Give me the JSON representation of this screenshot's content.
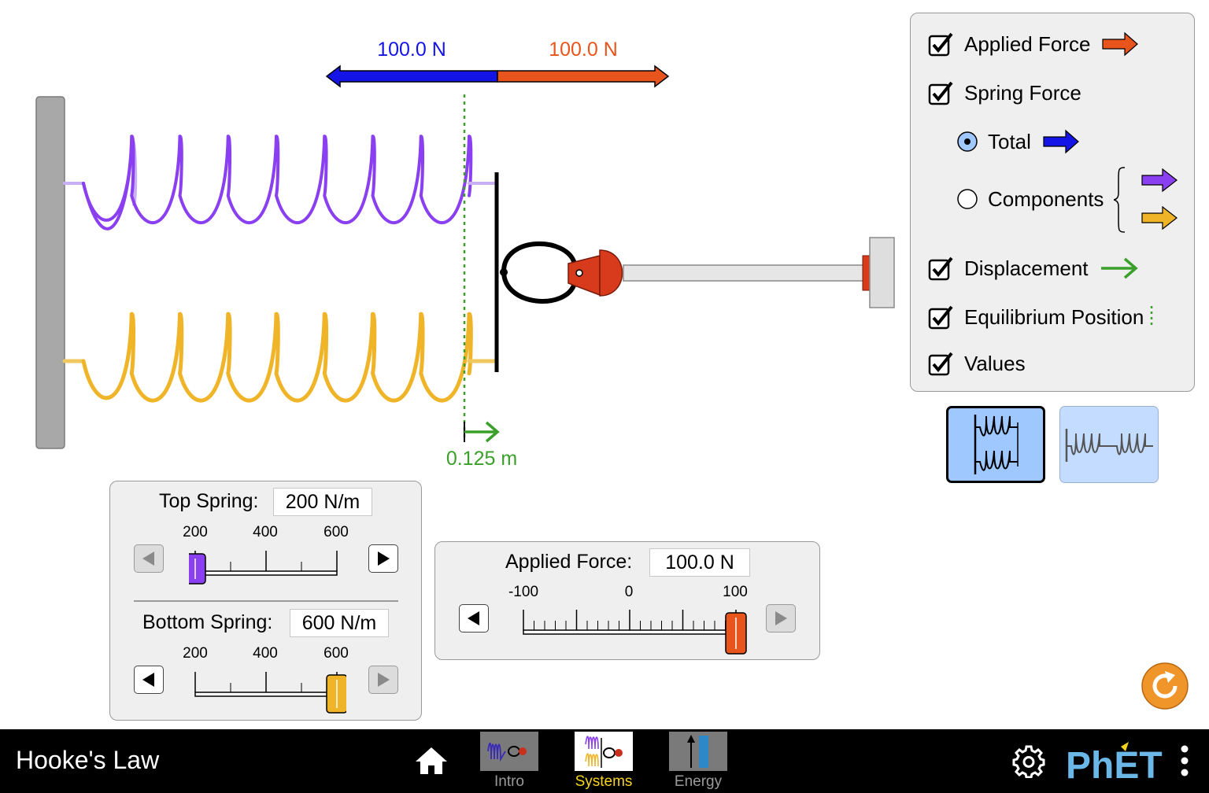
{
  "app": {
    "title": "Hooke's Law",
    "brand": "PhET"
  },
  "navbar": {
    "tabs": [
      {
        "label": "Intro",
        "selected": false
      },
      {
        "label": "Systems",
        "selected": true
      },
      {
        "label": "Energy",
        "selected": false
      }
    ]
  },
  "scene": {
    "spring_force_label": "100.0 N",
    "applied_force_label": "100.0 N",
    "displacement_label": "0.125 m"
  },
  "options": {
    "applied_force": {
      "label": "Applied Force",
      "checked": true
    },
    "spring_force": {
      "label": "Spring Force",
      "checked": true
    },
    "total": {
      "label": "Total",
      "selected": true
    },
    "components": {
      "label": "Components",
      "selected": false
    },
    "displacement": {
      "label": "Displacement",
      "checked": true
    },
    "equilibrium_position": {
      "label": "Equilibrium Position",
      "checked": true
    },
    "values": {
      "label": "Values",
      "checked": true
    }
  },
  "view_toggle": {
    "selected": "parallel",
    "options": [
      "parallel",
      "series"
    ]
  },
  "springs": {
    "top": {
      "label": "Top Spring:",
      "value": "200 N/m",
      "ticks": [
        "200",
        "400",
        "600"
      ],
      "fraction": 0.0
    },
    "bottom": {
      "label": "Bottom Spring:",
      "value": "600 N/m",
      "ticks": [
        "200",
        "400",
        "600"
      ],
      "fraction": 1.0
    }
  },
  "applied_force_control": {
    "label": "Applied Force:",
    "value": "100.0 N",
    "ticks": [
      "-100",
      "0",
      "100"
    ],
    "fraction": 1.0
  },
  "colors": {
    "applied_force": "#e8551c",
    "spring_force_total": "#1414e6",
    "top_spring": "#8a3ff0",
    "bottom_spring": "#f0b428",
    "displacement": "#3aa02a",
    "panel_bg": "#efefef",
    "selected_view": "#9ec8ff",
    "nav_selected": "#f5d31d"
  }
}
